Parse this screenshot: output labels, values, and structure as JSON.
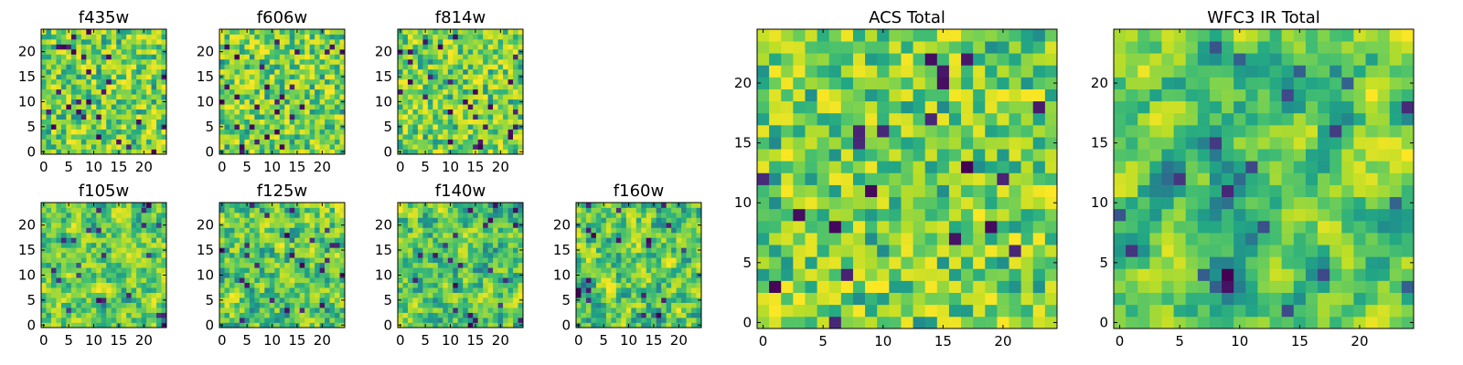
{
  "figure": {
    "background": "#ffffff",
    "colormap": "viridis"
  },
  "chart_data": [
    {
      "type": "heatmap",
      "title": "f435w",
      "grid_size": 25,
      "seed": 11,
      "smooth": 0,
      "xticks": [
        "0",
        "5",
        "10",
        "15",
        "20"
      ],
      "yticks": [
        "0",
        "5",
        "10",
        "15",
        "20"
      ],
      "xlim": [
        -0.5,
        24.5
      ],
      "ylim": [
        -0.5,
        24.5
      ],
      "value_range": [
        0,
        1
      ],
      "values": null
    },
    {
      "type": "heatmap",
      "title": "f606w",
      "grid_size": 25,
      "seed": 23,
      "smooth": 0,
      "xticks": [
        "0",
        "5",
        "10",
        "15",
        "20"
      ],
      "yticks": [
        "0",
        "5",
        "10",
        "15",
        "20"
      ],
      "xlim": [
        -0.5,
        24.5
      ],
      "ylim": [
        -0.5,
        24.5
      ],
      "value_range": [
        0,
        1
      ],
      "values": null
    },
    {
      "type": "heatmap",
      "title": "f814w",
      "grid_size": 25,
      "seed": 37,
      "smooth": 0,
      "xticks": [
        "0",
        "5",
        "10",
        "15",
        "20"
      ],
      "yticks": [
        "0",
        "5",
        "10",
        "15",
        "20"
      ],
      "xlim": [
        -0.5,
        24.5
      ],
      "ylim": [
        -0.5,
        24.5
      ],
      "value_range": [
        0,
        1
      ],
      "values": null
    },
    {
      "type": "heatmap",
      "title": "f105w",
      "grid_size": 25,
      "seed": 41,
      "smooth": 1,
      "xticks": [
        "0",
        "5",
        "10",
        "15",
        "20"
      ],
      "yticks": [
        "0",
        "5",
        "10",
        "15",
        "20"
      ],
      "xlim": [
        -0.5,
        24.5
      ],
      "ylim": [
        -0.5,
        24.5
      ],
      "value_range": [
        0,
        1
      ],
      "values": null
    },
    {
      "type": "heatmap",
      "title": "f125w",
      "grid_size": 25,
      "seed": 53,
      "smooth": 1,
      "xticks": [
        "0",
        "5",
        "10",
        "15",
        "20"
      ],
      "yticks": [
        "0",
        "5",
        "10",
        "15",
        "20"
      ],
      "xlim": [
        -0.5,
        24.5
      ],
      "ylim": [
        -0.5,
        24.5
      ],
      "value_range": [
        0,
        1
      ],
      "values": null
    },
    {
      "type": "heatmap",
      "title": "f140w",
      "grid_size": 25,
      "seed": 67,
      "smooth": 1,
      "xticks": [
        "0",
        "5",
        "10",
        "15",
        "20"
      ],
      "yticks": [
        "0",
        "5",
        "10",
        "15",
        "20"
      ],
      "xlim": [
        -0.5,
        24.5
      ],
      "ylim": [
        -0.5,
        24.5
      ],
      "value_range": [
        0,
        1
      ],
      "values": null
    },
    {
      "type": "heatmap",
      "title": "f160w",
      "grid_size": 25,
      "seed": 79,
      "smooth": 1,
      "xticks": [
        "0",
        "5",
        "10",
        "15",
        "20"
      ],
      "yticks": [
        "0",
        "5",
        "10",
        "15",
        "20"
      ],
      "xlim": [
        -0.5,
        24.5
      ],
      "ylim": [
        -0.5,
        24.5
      ],
      "value_range": [
        0,
        1
      ],
      "values": null
    },
    {
      "type": "heatmap",
      "title": "ACS Total",
      "grid_size": 25,
      "seed": 97,
      "smooth": 0,
      "xticks": [
        "0",
        "5",
        "10",
        "15",
        "20"
      ],
      "yticks": [
        "0",
        "5",
        "10",
        "15",
        "20"
      ],
      "xlim": [
        -0.5,
        24.5
      ],
      "ylim": [
        -0.5,
        24.5
      ],
      "value_range": [
        0,
        1
      ],
      "values": null
    },
    {
      "type": "heatmap",
      "title": "WFC3 IR Total",
      "grid_size": 25,
      "seed": 113,
      "smooth": 2,
      "xticks": [
        "0",
        "5",
        "10",
        "15",
        "20"
      ],
      "yticks": [
        "0",
        "5",
        "10",
        "15",
        "20"
      ],
      "xlim": [
        -0.5,
        24.5
      ],
      "ylim": [
        -0.5,
        24.5
      ],
      "value_range": [
        0,
        1
      ],
      "values": null
    }
  ]
}
